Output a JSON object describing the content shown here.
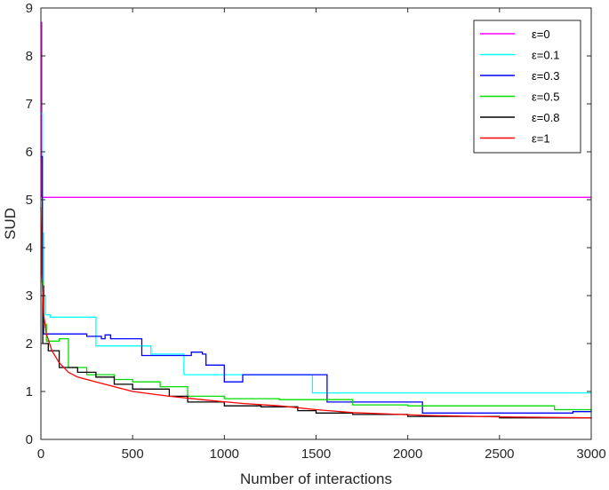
{
  "chart_data": {
    "type": "line",
    "title": "",
    "xlabel": "Number of interactions",
    "ylabel": "SUD",
    "xlim": [
      0,
      3000
    ],
    "ylim": [
      0,
      9
    ],
    "xticks": [
      0,
      500,
      1000,
      1500,
      2000,
      2500,
      3000
    ],
    "yticks": [
      0,
      1,
      2,
      3,
      4,
      5,
      6,
      7,
      8,
      9
    ],
    "grid": false,
    "legend_position": "top-right",
    "series": [
      {
        "name": "ε=0",
        "color": "#ff00ff",
        "step": true,
        "points": [
          [
            0,
            8.7
          ],
          [
            5,
            5.05
          ],
          [
            3000,
            5.05
          ]
        ]
      },
      {
        "name": "ε=0.1",
        "color": "#00ffff",
        "step": true,
        "points": [
          [
            0,
            6.8
          ],
          [
            8,
            4.3
          ],
          [
            15,
            3.0
          ],
          [
            25,
            2.6
          ],
          [
            50,
            2.55
          ],
          [
            300,
            1.95
          ],
          [
            600,
            1.78
          ],
          [
            780,
            1.35
          ],
          [
            1000,
            1.35
          ],
          [
            1480,
            0.97
          ],
          [
            3000,
            0.97
          ]
        ]
      },
      {
        "name": "ε=0.3",
        "color": "#0000ff",
        "step": true,
        "points": [
          [
            0,
            5.9
          ],
          [
            8,
            3.2
          ],
          [
            15,
            2.2
          ],
          [
            250,
            2.15
          ],
          [
            330,
            2.1
          ],
          [
            350,
            2.18
          ],
          [
            380,
            2.1
          ],
          [
            550,
            1.75
          ],
          [
            820,
            1.82
          ],
          [
            880,
            1.78
          ],
          [
            900,
            1.55
          ],
          [
            1000,
            1.2
          ],
          [
            1100,
            1.35
          ],
          [
            1460,
            1.35
          ],
          [
            1560,
            0.78
          ],
          [
            2060,
            0.78
          ],
          [
            2080,
            0.55
          ],
          [
            2500,
            0.55
          ],
          [
            2900,
            0.58
          ],
          [
            3000,
            0.6
          ]
        ]
      },
      {
        "name": "ε=0.5",
        "color": "#00dd00",
        "step": true,
        "points": [
          [
            0,
            3.3
          ],
          [
            10,
            2.4
          ],
          [
            30,
            2.05
          ],
          [
            100,
            2.1
          ],
          [
            150,
            1.5
          ],
          [
            250,
            1.35
          ],
          [
            400,
            1.25
          ],
          [
            500,
            1.2
          ],
          [
            650,
            1.1
          ],
          [
            800,
            0.9
          ],
          [
            1000,
            0.85
          ],
          [
            1300,
            0.83
          ],
          [
            1500,
            0.83
          ],
          [
            1700,
            0.72
          ],
          [
            2000,
            0.7
          ],
          [
            2500,
            0.7
          ],
          [
            2800,
            0.62
          ],
          [
            3000,
            0.58
          ]
        ]
      },
      {
        "name": "ε=0.8",
        "color": "#000000",
        "step": true,
        "points": [
          [
            0,
            3.0
          ],
          [
            10,
            2.0
          ],
          [
            40,
            1.85
          ],
          [
            100,
            1.5
          ],
          [
            200,
            1.4
          ],
          [
            300,
            1.3
          ],
          [
            400,
            1.15
          ],
          [
            500,
            1.05
          ],
          [
            700,
            0.9
          ],
          [
            800,
            0.78
          ],
          [
            1000,
            0.7
          ],
          [
            1200,
            0.68
          ],
          [
            1400,
            0.6
          ],
          [
            1500,
            0.55
          ],
          [
            1700,
            0.52
          ],
          [
            2000,
            0.48
          ],
          [
            2500,
            0.45
          ],
          [
            3000,
            0.43
          ]
        ]
      },
      {
        "name": "ε=1",
        "color": "#ff0000",
        "step": false,
        "points": [
          [
            0,
            4.85
          ],
          [
            5,
            3.5
          ],
          [
            15,
            2.6
          ],
          [
            30,
            2.2
          ],
          [
            60,
            1.85
          ],
          [
            100,
            1.6
          ],
          [
            150,
            1.4
          ],
          [
            200,
            1.3
          ],
          [
            300,
            1.2
          ],
          [
            400,
            1.1
          ],
          [
            500,
            1.0
          ],
          [
            700,
            0.9
          ],
          [
            900,
            0.82
          ],
          [
            1100,
            0.75
          ],
          [
            1300,
            0.7
          ],
          [
            1500,
            0.62
          ],
          [
            1700,
            0.56
          ],
          [
            1900,
            0.53
          ],
          [
            2100,
            0.5
          ],
          [
            2500,
            0.47
          ],
          [
            3000,
            0.45
          ]
        ]
      }
    ]
  }
}
